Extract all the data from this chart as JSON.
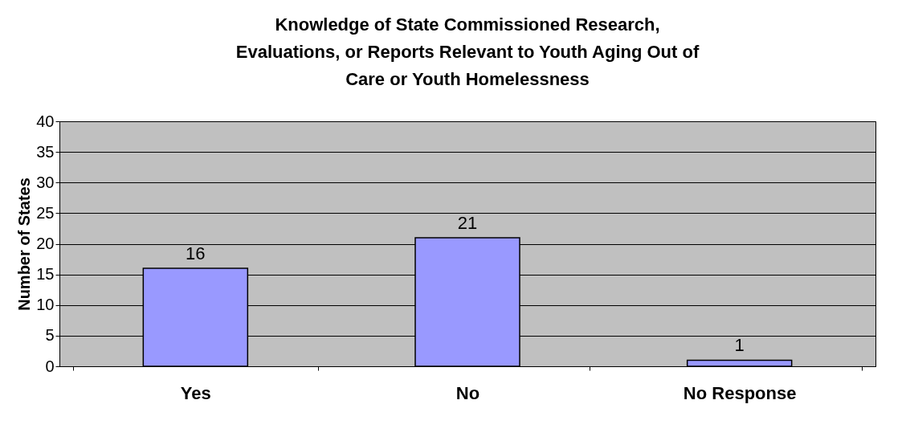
{
  "chart_data": {
    "type": "bar",
    "title": "Knowledge of  State Commissioned Research, Evaluations, or Reports Relevant to Youth Aging Out of Care or Youth Homelessness",
    "ylabel": "Number of States",
    "categories": [
      "Yes",
      "No",
      "No Response"
    ],
    "values": [
      16,
      21,
      1
    ],
    "color": "#9999ff",
    "ylim": [
      0,
      40
    ],
    "yticks": [
      0,
      5,
      10,
      15,
      20,
      25,
      30,
      35,
      40
    ],
    "grid": "y",
    "data_labels": true
  }
}
